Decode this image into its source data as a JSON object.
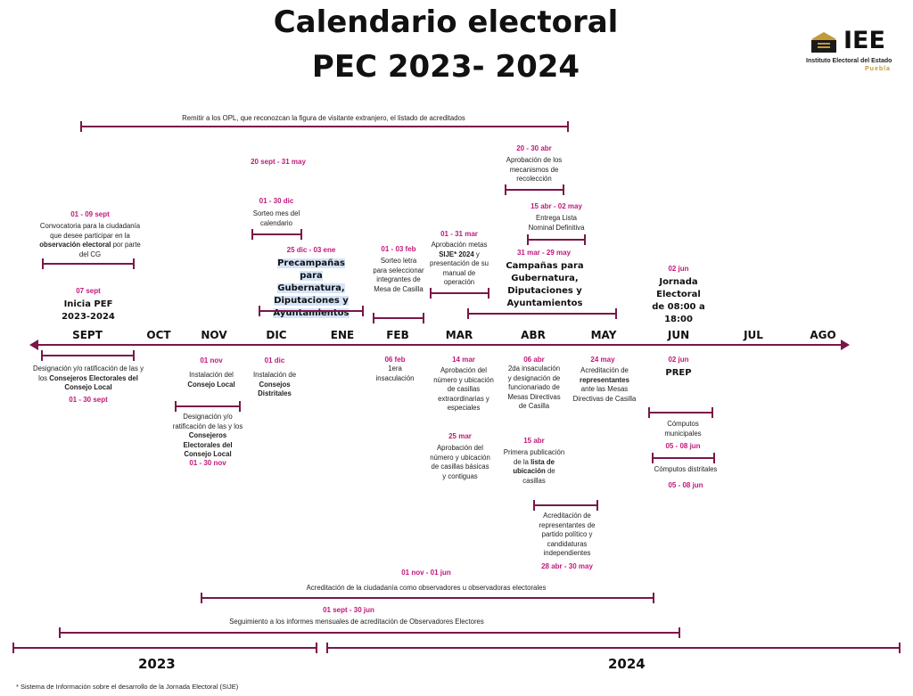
{
  "title_line1": "Calendario electoral",
  "title_line2": "PEC  2023- 2024",
  "logo": {
    "text": "IEE",
    "subtitle": "Instituto Electoral del Estado",
    "city": "Puebla"
  },
  "months": [
    "SEPT",
    "OCT",
    "NOV",
    "DIC",
    "ENE",
    "FEB",
    "MAR",
    "ABR",
    "MAY",
    "JUN",
    "JUL",
    "AGO"
  ],
  "above": {
    "visitante": "Remitir a los OPL, que reconozcan la figura de visitante extranjero, el listado de acreditados",
    "sept_date": "01  - 09 sept",
    "sept_text_a": "Convocatoria para la ciudadanía que desee participar en la",
    "sept_text_b": "observación electoral",
    "sept_text_c": "por parte del CG",
    "pef_date": "07 sept",
    "pef_text": "Inicia PEF 2023-2024",
    "sorteo_range": "20 sept - 31 may",
    "sorteo_date": "01 - 30 dic",
    "sorteo_text": "Sorteo mes del calendario",
    "precamp_date": "25 dic - 03 ene",
    "precamp_text": "Precampañas para Gubernatura, Diputaciones y Ayuntamientos",
    "sorteo_letra_date": "01 - 03 feb",
    "sorteo_letra_text": "Sorteo letra para seleccionar integrantes de Mesa de Casilla",
    "metas_date": "01 - 31 mar",
    "metas_text_a": "Aprobación metas",
    "metas_text_b": "SIJE* 2024",
    "metas_text_c": "y presentación de su manual de operación",
    "recol_date": "20 - 30 abr",
    "recol_text": "Aprobación de los mecanismos de recolección",
    "lista_date": "15 abr - 02 may",
    "lista_text": "Entrega Lista Nominal Definitiva",
    "camp_date": "31 mar - 29 may",
    "camp_text": "Campañas para Gubernatura, Diputaciones y Ayuntamientos",
    "jornada_date": "02 jun",
    "jornada_text": "Jornada Electoral de 08:00 a 18:00"
  },
  "below": {
    "consejeros_text_a": "Designación y/o ratificación de las y los",
    "consejeros_text_b": "Consejeros Electorales del Consejo Local",
    "consejeros_date": "01  - 30 sept",
    "inst_local_date": "01 nov",
    "inst_local_text_a": "Instalación del",
    "inst_local_text_b": "Consejo Local",
    "dist_text_a": "Designación y/o ratificación de las y los",
    "dist_text_b": "Consejeros Electorales del Consejo Local",
    "dist_date": "01 - 30 nov",
    "inst_dist_date": "01 dic",
    "inst_dist_text_a": "Instalación de",
    "inst_dist_text_b": "Consejos Distritales",
    "insac1_date": "06 feb",
    "insac1_text": "1era insaculación",
    "aprob_casillas_date": "14 mar",
    "aprob_casillas_text": "Aprobación del número y ubicación de casillas extraordinarias y especiales",
    "aprob_basicas_date": "25 mar",
    "aprob_basicas_text": "Aprobación del número y ubicación de casillas básicas y contiguas",
    "insac2_date": "06 abr",
    "insac2_text": "2da insaculación y designación de funcionariado de Mesas Directivas de Casilla",
    "publ_date": "15 abr",
    "publ_text_a": "Primera publicación de la",
    "publ_text_b": "lista de ubicación",
    "publ_text_c": "de casillas",
    "acred_rep_date": "24 may",
    "acred_rep_text_a": "Acreditación de",
    "acred_rep_text_b": "representantes",
    "acred_rep_text_c": "ante las Mesas Directivas de Casilla",
    "prep_date": "02 jun",
    "prep_text": "PREP",
    "comp_mun_text": "Cómputos municipales",
    "comp_mun_date": "05 - 08 jun",
    "comp_dist_text": "Cómputos distritales",
    "comp_dist_date": "05 - 08 jun",
    "acred_partido_text": "Acreditación de representantes de partido político y candidaturas independientes",
    "acred_partido_date": "28 abr - 30 may",
    "obs_date": "01  nov - 01 jun",
    "obs_text": "Acreditación de la ciudadanía como observadores u observadoras electorales",
    "seg_date": "01 sept - 30 jun",
    "seg_text": "Seguimiento a los informes mensuales de acreditación de Observadores Electores"
  },
  "years": [
    "2023",
    "2024"
  ],
  "footnote": "* Sistema de Información sobre el desarrollo de la Jornada Electoral (SIJE)",
  "colors": {
    "bar": "#7b1648",
    "date": "#c2187a",
    "highlight": "#d5e4f7"
  }
}
